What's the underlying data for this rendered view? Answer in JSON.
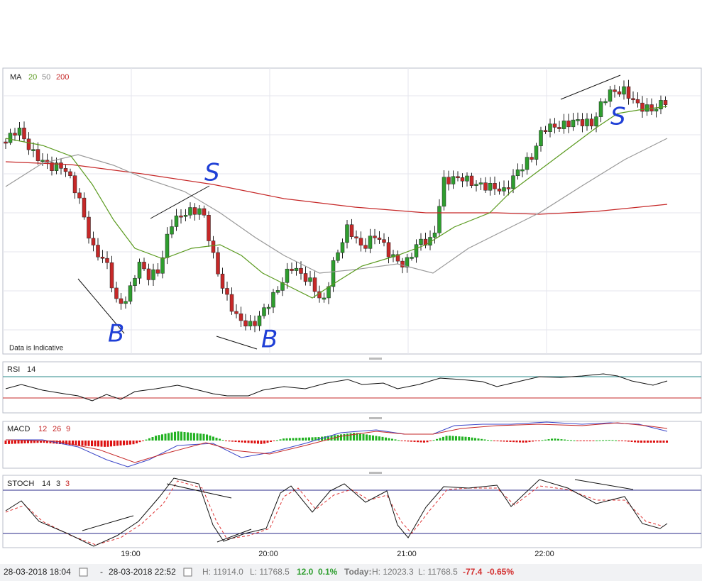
{
  "main_panel": {
    "indicator": "MA",
    "periods": [
      "20",
      "50",
      "200"
    ],
    "note": "Data is Indicative",
    "annotations": [
      "S",
      "B",
      "B",
      "S"
    ]
  },
  "rsi_panel": {
    "indicator": "RSI",
    "period": "14"
  },
  "macd_panel": {
    "indicator": "MACD",
    "params": [
      "12",
      "26",
      "9"
    ]
  },
  "stoch_panel": {
    "indicator": "STOCH",
    "params": [
      "14",
      "3",
      "3"
    ]
  },
  "time_axis": [
    "19:00",
    "20:00",
    "21:00",
    "22:00"
  ],
  "status_bar": {
    "from": "28-03-2018 18:04",
    "separator": "-",
    "to": "28-03-2018 22:52",
    "high": "H: 11914.0",
    "low": "L: 11768.5",
    "change": "12.0",
    "change_pct": "0.1%",
    "today_label": "Today:",
    "today_high": "H: 12023.3",
    "today_low": "L: 11768.5",
    "today_change": "-77.4",
    "today_change_pct": "-0.65%"
  }
}
